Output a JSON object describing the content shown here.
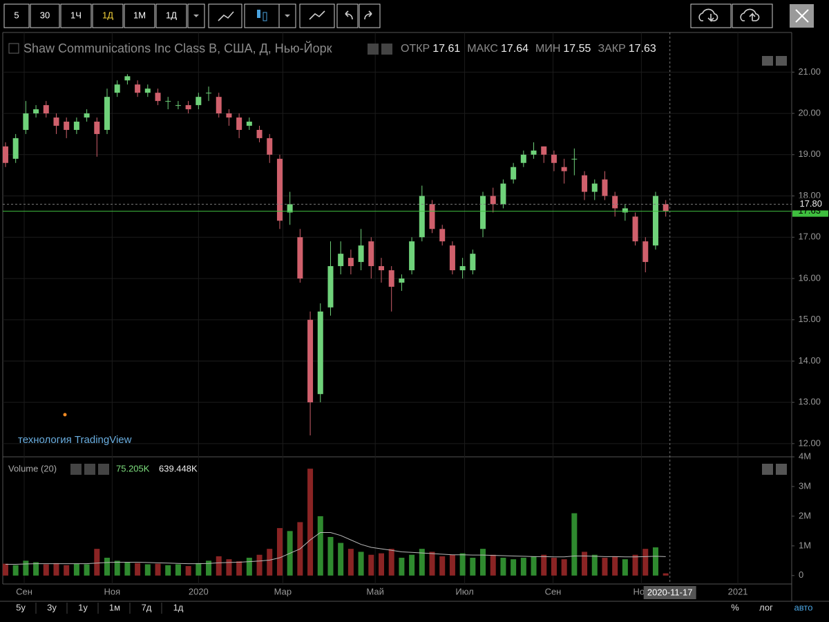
{
  "toolbar": {
    "intervals": [
      "5",
      "30",
      "1Ч",
      "1Д",
      "1М",
      "1Д"
    ]
  },
  "bottom_bar": {
    "ranges": [
      "5y",
      "3y",
      "1y",
      "1м",
      "7д",
      "1д"
    ],
    "scale_options": [
      "%",
      "лог",
      "авто"
    ]
  },
  "watermark": "технология TradingView",
  "chart_data": {
    "type": "candlestick",
    "title": "Shaw Communications Inc Class B, США, Д, Нью-Йорк",
    "legend": {
      "open_label": "ОТКР",
      "open": 17.61,
      "high_label": "МАКС",
      "high": 17.64,
      "low_label": "МИН",
      "low": 17.55,
      "close_label": "ЗАКР",
      "close": 17.63
    },
    "up_color": "#6fd27a",
    "down_color": "#d0606c",
    "xlim": [
      -0.27,
      77.4
    ],
    "xticks": [
      {
        "value": 1.84,
        "label": "Сен"
      },
      {
        "value": 10.5,
        "label": "Ноя"
      },
      {
        "value": 19,
        "label": "2020"
      },
      {
        "value": 27.3,
        "label": "Мар"
      },
      {
        "value": 36.4,
        "label": "Май"
      },
      {
        "value": 45.2,
        "label": "Июл"
      },
      {
        "value": 53.9,
        "label": "Сен"
      },
      {
        "value": 62.6,
        "label": "Ноя"
      },
      {
        "value": 72.1,
        "label": "2021"
      }
    ],
    "ylim": [
      11.68,
      21.96
    ],
    "yticks": [
      {
        "value": 12,
        "label": "12.00"
      },
      {
        "value": 13,
        "label": "13.00"
      },
      {
        "value": 14,
        "label": "14.00"
      },
      {
        "value": 15,
        "label": "15.00"
      },
      {
        "value": 16,
        "label": "16.00"
      },
      {
        "value": 17,
        "label": "17.00"
      },
      {
        "value": 18,
        "label": "18.00"
      },
      {
        "value": 19,
        "label": "19.00"
      },
      {
        "value": 20,
        "label": "20.00"
      },
      {
        "value": 21,
        "label": "21.00"
      }
    ],
    "open": [
      19.2,
      18.9,
      19.6,
      20.0,
      20.2,
      19.9,
      19.8,
      19.6,
      19.9,
      19.8,
      19.6,
      20.5,
      20.8,
      20.7,
      20.5,
      20.5,
      20.3,
      20.2,
      20.2,
      20.2,
      20.5,
      20.4,
      20.0,
      19.9,
      19.7,
      19.6,
      19.4,
      18.9,
      17.6,
      17.0,
      15.0,
      13.2,
      15.3,
      16.3,
      16.5,
      16.4,
      16.9,
      16.3,
      16.2,
      15.9,
      16.2,
      17.0,
      17.8,
      17.2,
      16.8,
      16.2,
      16.2,
      17.2,
      18.0,
      17.8,
      18.4,
      18.8,
      19.0,
      19.2,
      19.0,
      18.7,
      18.9,
      18.5,
      18.1,
      18.4,
      18.0,
      17.6,
      17.5,
      16.9,
      16.8,
      17.8
    ],
    "high": [
      19.3,
      19.5,
      20.3,
      20.2,
      20.3,
      20.0,
      19.9,
      19.9,
      20.1,
      19.9,
      20.6,
      20.8,
      20.95,
      20.8,
      20.7,
      20.6,
      20.4,
      20.3,
      20.3,
      20.5,
      20.65,
      20.5,
      20.1,
      20.0,
      19.9,
      19.7,
      19.5,
      19.0,
      18.1,
      17.2,
      15.2,
      15.4,
      16.9,
      16.9,
      16.7,
      17.2,
      17.0,
      16.5,
      16.3,
      16.1,
      17.0,
      18.25,
      17.9,
      17.3,
      16.9,
      16.5,
      16.7,
      18.1,
      18.2,
      18.4,
      18.8,
      19.1,
      19.3,
      19.2,
      19.1,
      18.9,
      19.15,
      18.6,
      18.4,
      18.6,
      18.1,
      17.8,
      17.6,
      17.0,
      18.1,
      17.9
    ],
    "low": [
      18.7,
      18.8,
      19.5,
      19.9,
      19.9,
      19.5,
      19.4,
      19.5,
      19.8,
      18.95,
      19.5,
      20.4,
      20.7,
      20.4,
      20.4,
      20.2,
      20.1,
      20.1,
      20.0,
      20.1,
      20.3,
      19.9,
      19.7,
      19.4,
      19.6,
      19.3,
      18.8,
      17.2,
      17.3,
      15.9,
      12.2,
      13.0,
      15.1,
      16.1,
      16.1,
      16.2,
      16.0,
      15.9,
      15.2,
      15.7,
      16.1,
      16.9,
      17.1,
      16.8,
      16.1,
      16.0,
      16.1,
      17.0,
      17.6,
      17.7,
      18.3,
      18.7,
      18.9,
      18.8,
      18.6,
      18.3,
      18.5,
      17.9,
      17.9,
      17.9,
      17.5,
      17.4,
      16.8,
      16.15,
      16.7,
      17.5
    ],
    "close": [
      18.8,
      19.4,
      20.0,
      20.1,
      20.0,
      19.7,
      19.6,
      19.8,
      20.0,
      19.5,
      20.4,
      20.7,
      20.9,
      20.5,
      20.6,
      20.3,
      20.3,
      20.2,
      20.1,
      20.4,
      20.5,
      20.0,
      19.9,
      19.6,
      19.8,
      19.4,
      19.0,
      17.4,
      17.8,
      16.0,
      13.0,
      15.2,
      16.3,
      16.6,
      16.3,
      16.8,
      16.3,
      16.2,
      15.8,
      16.0,
      16.9,
      18.0,
      17.2,
      16.9,
      16.2,
      16.3,
      16.6,
      18.0,
      17.8,
      18.3,
      18.7,
      19.0,
      19.1,
      19.0,
      18.8,
      18.6,
      18.9,
      18.1,
      18.3,
      18.0,
      17.7,
      17.7,
      16.9,
      16.4,
      18.0,
      17.63
    ],
    "last_price": {
      "value": 17.63,
      "label": "17.63",
      "color": "#3fbf3f"
    },
    "crosshair": {
      "price": {
        "value": 17.8,
        "label": "17.80"
      },
      "date": "2020-11-17"
    },
    "volume": {
      "title": "Volume (20)",
      "last": {
        "value": 75205,
        "label": "75.205K"
      },
      "ma_last": {
        "value": 639448,
        "label": "639.448K"
      },
      "up_color": "#2f8a2f",
      "down_color": "#8a2424",
      "ma_color": "#bbbbbb",
      "ylim": [
        -284000,
        4000000
      ],
      "yticks": [
        {
          "value": 0,
          "label": "0"
        },
        {
          "value": 1000000,
          "label": "1M"
        },
        {
          "value": 2000000,
          "label": "2M"
        },
        {
          "value": 3000000,
          "label": "3M"
        },
        {
          "value": 4000000,
          "label": "4M"
        }
      ],
      "values": [
        400000,
        350000,
        500000,
        450000,
        380000,
        420000,
        350000,
        400000,
        380000,
        900000,
        600000,
        500000,
        450000,
        420000,
        380000,
        400000,
        350000,
        380000,
        320000,
        420000,
        500000,
        650000,
        550000,
        480000,
        600000,
        700000,
        900000,
        1600000,
        1500000,
        1800000,
        3600000,
        2000000,
        1300000,
        1100000,
        900000,
        800000,
        700000,
        750000,
        900000,
        600000,
        700000,
        900000,
        800000,
        650000,
        700000,
        750000,
        600000,
        900000,
        700000,
        600000,
        550000,
        600000,
        650000,
        700000,
        600000,
        550000,
        2100000,
        800000,
        700000,
        600000,
        650000,
        550000,
        700000,
        900000,
        950000,
        75205
      ],
      "ma": [
        380000,
        380000,
        390000,
        400000,
        400000,
        400000,
        400000,
        400000,
        400000,
        420000,
        440000,
        450000,
        450000,
        450000,
        440000,
        430000,
        420000,
        410000,
        400000,
        400000,
        410000,
        430000,
        440000,
        450000,
        470000,
        490000,
        520000,
        600000,
        750000,
        900000,
        1200000,
        1450000,
        1450000,
        1350000,
        1200000,
        1050000,
        950000,
        900000,
        850000,
        800000,
        780000,
        760000,
        740000,
        720000,
        700000,
        700000,
        690000,
        690000,
        680000,
        670000,
        660000,
        650000,
        640000,
        640000,
        630000,
        630000,
        660000,
        660000,
        650000,
        640000,
        640000,
        630000,
        630000,
        640000,
        650000,
        639448
      ]
    }
  }
}
